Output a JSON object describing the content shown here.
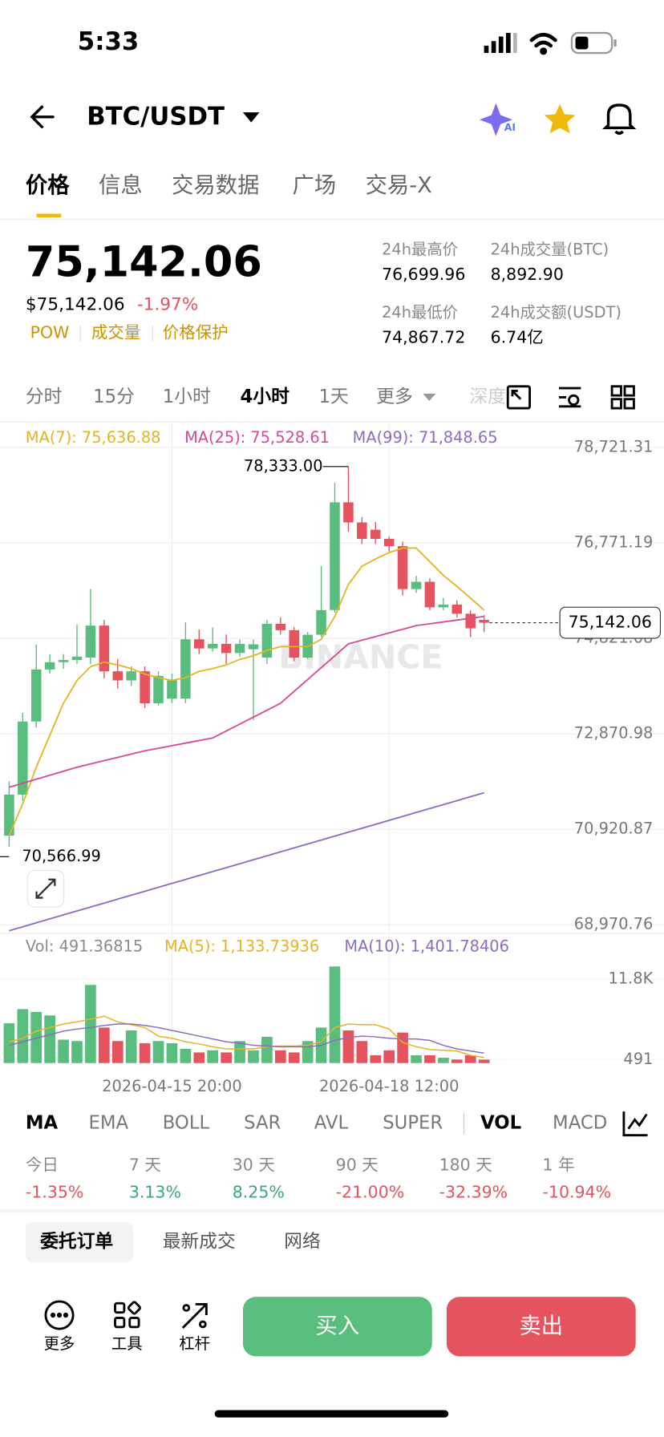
{
  "status": {
    "time": "5:33"
  },
  "header": {
    "pair": "BTC/USDT"
  },
  "tabs": [
    "价格",
    "信息",
    "交易数据",
    "广场",
    "交易-X"
  ],
  "ticker": {
    "price": "75,142.06",
    "usd": "$75,142.06",
    "change": "-1.97%",
    "tags": [
      "POW",
      "成交量",
      "价格保护"
    ],
    "stats": [
      {
        "label": "24h最高价",
        "value": "76,699.96"
      },
      {
        "label": "24h成交量(BTC)",
        "value": "8,892.90"
      },
      {
        "label": "24h最低价",
        "value": "74,867.72"
      },
      {
        "label": "24h成交额(USDT)",
        "value": "6.74亿"
      }
    ]
  },
  "intervals": [
    "分时",
    "15分",
    "1小时",
    "4小时",
    "1天",
    "更多",
    "深度"
  ],
  "chart_data": {
    "type": "candlestick",
    "watermark": "BINANCE",
    "categories": [
      null,
      null,
      null,
      null,
      null,
      null,
      null,
      null,
      null,
      null,
      null,
      null,
      "2026-04-15 20:00",
      null,
      null,
      null,
      null,
      null,
      null,
      null,
      null,
      null,
      null,
      null,
      null,
      null,
      null,
      null,
      "2026-04-18 12:00",
      null,
      null,
      null,
      null,
      null,
      null,
      null
    ],
    "open": [
      70790,
      71630,
      73123,
      74187,
      74336,
      74380,
      74429,
      75083,
      74149,
      73963,
      74149,
      73496,
      73590,
      73590,
      74803,
      74616,
      74710,
      74523,
      74600,
      74429,
      75120,
      74989,
      74429,
      74896,
      75400,
      77602,
      77191,
      77042,
      76855,
      76706,
      75829,
      75978,
      75456,
      75512,
      75325,
      75200
    ],
    "high": [
      71900,
      73300,
      74700,
      74500,
      74500,
      75100,
      75830,
      75200,
      74400,
      74250,
      74250,
      74150,
      74100,
      75150,
      75000,
      75050,
      74900,
      74800,
      74800,
      75200,
      75250,
      75050,
      74950,
      76300,
      78000,
      78333,
      77300,
      77200,
      76900,
      76800,
      76100,
      76050,
      75650,
      75600,
      75400,
      75300
    ],
    "low": [
      70566.99,
      71500,
      73000,
      74100,
      74200,
      74300,
      74300,
      74000,
      73800,
      73850,
      73400,
      73450,
      73500,
      73500,
      74500,
      74550,
      74300,
      74450,
      73150,
      74300,
      74900,
      74350,
      74400,
      74850,
      75350,
      77000,
      76750,
      76750,
      76600,
      75700,
      75750,
      75400,
      75400,
      75250,
      74850,
      74950
    ],
    "close": [
      71630,
      73123,
      74187,
      74336,
      74380,
      74450,
      75083,
      74149,
      73963,
      74149,
      73496,
      74056,
      73963,
      74803,
      74616,
      74710,
      74523,
      74710,
      74700,
      75120,
      74989,
      74429,
      74896,
      75400,
      77602,
      77191,
      76855,
      76855,
      76706,
      75829,
      75978,
      75456,
      75512,
      75325,
      75027,
      75142.06
    ],
    "up_color": "#58bd7d",
    "down_color": "#e5535f",
    "series": [
      {
        "name": "MA(7): 75,636.88",
        "color": "#e6b422",
        "values": [
          70790,
          71443,
          72190,
          72843,
          73496,
          73963,
          74243,
          74336,
          74280,
          74205,
          74093,
          74018,
          73963,
          74018,
          74149,
          74205,
          74280,
          74392,
          74467,
          74578,
          74653,
          74653,
          74653,
          74803,
          75270,
          75924,
          76295,
          76445,
          76575,
          76668,
          76668,
          76389,
          76109,
          75885,
          75643,
          75400
        ]
      },
      {
        "name": "MA(25): 75,528.61",
        "color": "#d6499a",
        "values": [
          71779,
          71861,
          71943,
          72026,
          72108,
          72190,
          72257,
          72324,
          72391,
          72458,
          72525,
          72577,
          72630,
          72682,
          72735,
          72787,
          72929,
          73071,
          73212,
          73354,
          73496,
          73739,
          73981,
          74224,
          74466,
          74709,
          74784,
          74859,
          74933,
          75008,
          75083,
          75120,
          75158,
          75195,
          75233,
          75270
        ]
      },
      {
        "name": "MA(99): 71,848.65",
        "color": "#8e6bbf",
        "values": [
          68850,
          68930,
          69011,
          69091,
          69172,
          69252,
          69333,
          69413,
          69494,
          69574,
          69655,
          69735,
          69816,
          69896,
          69977,
          70057,
          70138,
          70218,
          70299,
          70379,
          70460,
          70540,
          70621,
          70701,
          70782,
          70862,
          70943,
          71023,
          71104,
          71184,
          71265,
          71345,
          71426,
          71506,
          71587,
          71667
        ]
      }
    ],
    "ylim": [
      68794,
      79244
    ],
    "yticks": [
      {
        "value": 68970.76,
        "label": "68,970.76"
      },
      {
        "value": 70920.87,
        "label": "70,920.87"
      },
      {
        "value": 72870.98,
        "label": "72,870.98"
      },
      {
        "value": 74821.08,
        "label": "74,821.08"
      },
      {
        "value": 76771.19,
        "label": "76,771.19"
      },
      {
        "value": 78721.31,
        "label": "78,721.31"
      }
    ],
    "high_label": "78,333.00",
    "low_label": "70,566.99",
    "last_price": {
      "value": 75142.06,
      "label": "75,142.06"
    },
    "volume": [
      5.6,
      7.6,
      7.2,
      6.7,
      3.3,
      3.1,
      11.0,
      5.0,
      3.1,
      4.6,
      2.8,
      3.1,
      2.8,
      2.0,
      1.5,
      1.8,
      1.5,
      3.1,
      1.8,
      3.7,
      1.8,
      1.5,
      3.1,
      5.0,
      13.6,
      4.6,
      3.1,
      1.1,
      1.8,
      4.3,
      1.1,
      1.1,
      0.75,
      0.5,
      1.1,
      0.49
    ],
    "volume_label": "Vol: 491.36815",
    "volume_series": [
      {
        "name": "MA(5): 1,133.73936",
        "color": "#e6b422",
        "values": [
          3.0,
          3.5,
          4.5,
          5.0,
          5.5,
          5.8,
          6.2,
          6.6,
          5.8,
          5.4,
          5.0,
          3.8,
          3.5,
          3.0,
          2.7,
          2.3,
          2.0,
          2.0,
          2.0,
          2.3,
          2.4,
          2.4,
          2.5,
          3.0,
          5.0,
          5.5,
          5.4,
          5.4,
          4.8,
          2.9,
          2.3,
          1.9,
          1.8,
          1.7,
          1.1,
          0.8
        ]
      },
      {
        "name": "MA(10): 1,401.78406",
        "color": "#8e6bbf",
        "values": [
          2.5,
          3.0,
          3.5,
          4.0,
          4.5,
          4.8,
          5.0,
          5.3,
          5.5,
          5.5,
          5.3,
          5.0,
          4.6,
          4.2,
          3.8,
          3.4,
          3.0,
          2.8,
          2.5,
          2.4,
          2.3,
          2.3,
          2.3,
          2.5,
          3.2,
          3.6,
          3.8,
          3.7,
          3.5,
          3.4,
          3.4,
          3.2,
          2.5,
          2.0,
          1.7,
          1.4
        ]
      }
    ],
    "vlim": [
      0,
      14.4
    ],
    "vticks": [
      {
        "value": 0.491,
        "label": "491"
      },
      {
        "value": 11.8,
        "label": "11.8K"
      }
    ]
  },
  "indicators": [
    "MA",
    "EMA",
    "BOLL",
    "SAR",
    "AVL",
    "SUPER",
    "VOL",
    "MACD"
  ],
  "performance": [
    {
      "label": "今日",
      "value": "-1.35%"
    },
    {
      "label": "7 天",
      "value": "3.13%"
    },
    {
      "label": "30 天",
      "value": "8.25%"
    },
    {
      "label": "90 天",
      "value": "-21.00%"
    },
    {
      "label": "180 天",
      "value": "-32.39%"
    },
    {
      "label": "1 年",
      "value": "-10.94%"
    }
  ],
  "order_tabs": [
    "委托订单",
    "最新成交",
    "网络"
  ],
  "toolbar": [
    "更多",
    "工具",
    "杠杆"
  ],
  "buttons": {
    "buy": "买入",
    "sell": "卖出"
  }
}
